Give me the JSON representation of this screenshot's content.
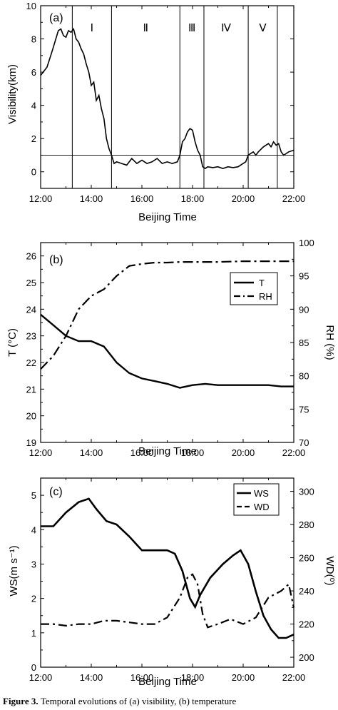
{
  "caption": {
    "lead": "Figure 3.",
    "text": "Temporal evolutions of (a) visibility, (b) temperature"
  },
  "chart_data": [
    {
      "id": "a",
      "type": "line",
      "panel_label": "(a)",
      "xlabel": "Beijing Time",
      "ylabel": "Visibility(km)",
      "x_ticks": [
        "12:00",
        "14:00",
        "16:00",
        "18:00",
        "20:00",
        "22:00"
      ],
      "xlim": [
        12,
        22
      ],
      "ylim": [
        -1,
        10
      ],
      "y_ticks": [
        "0",
        "2",
        "4",
        "6",
        "8",
        "10"
      ],
      "reference_line": 1,
      "phases": [
        {
          "label": "Ⅰ",
          "start": 13.25,
          "end": 14.8
        },
        {
          "label": "Ⅱ",
          "start": 14.8,
          "end": 17.5
        },
        {
          "label": "Ⅲ",
          "start": 17.5,
          "end": 18.45
        },
        {
          "label": "Ⅳ",
          "start": 18.45,
          "end": 20.2
        },
        {
          "label": "Ⅴ",
          "start": 20.2,
          "end": 21.35
        }
      ],
      "series": [
        {
          "x": [
            12.0,
            12.1,
            12.25,
            12.4,
            12.5,
            12.6,
            12.7,
            12.8,
            12.9,
            13.0,
            13.1,
            13.2,
            13.3,
            13.4,
            13.5,
            13.6,
            13.7,
            13.8,
            13.9,
            14.0,
            14.1,
            14.2,
            14.3,
            14.4,
            14.5,
            14.6,
            14.7,
            14.8,
            14.9,
            15.0,
            15.2,
            15.4,
            15.6,
            15.8,
            16.0,
            16.2,
            16.4,
            16.6,
            16.8,
            17.0,
            17.2,
            17.4,
            17.5,
            17.6,
            17.7,
            17.8,
            17.9,
            18.0,
            18.1,
            18.2,
            18.3,
            18.4,
            18.5,
            18.6,
            18.8,
            19.0,
            19.2,
            19.4,
            19.6,
            19.8,
            20.0,
            20.1,
            20.2,
            20.3,
            20.4,
            20.5,
            20.6,
            20.8,
            21.0,
            21.1,
            21.2,
            21.3,
            21.4,
            21.5,
            21.6,
            21.8,
            22.0
          ],
          "y": [
            5.8,
            6.0,
            6.3,
            7.0,
            7.5,
            8.0,
            8.5,
            8.6,
            8.2,
            8.1,
            8.5,
            8.4,
            8.6,
            8.0,
            7.8,
            7.4,
            7.1,
            6.5,
            6.0,
            5.2,
            5.4,
            4.3,
            4.6,
            3.8,
            3.2,
            2.0,
            1.4,
            1.0,
            0.5,
            0.6,
            0.5,
            0.4,
            0.8,
            0.5,
            0.7,
            0.5,
            0.6,
            0.8,
            0.5,
            0.6,
            0.5,
            0.6,
            1.0,
            1.8,
            2.0,
            2.4,
            2.6,
            2.5,
            1.8,
            1.3,
            1.0,
            0.3,
            0.2,
            0.3,
            0.25,
            0.3,
            0.2,
            0.3,
            0.25,
            0.3,
            0.5,
            0.6,
            1.0,
            1.1,
            1.2,
            1.0,
            1.2,
            1.5,
            1.7,
            1.5,
            1.8,
            1.6,
            1.7,
            1.2,
            1.0,
            1.2,
            1.3
          ]
        }
      ]
    },
    {
      "id": "b",
      "type": "line",
      "panel_label": "(b)",
      "xlabel": "Beijing Time",
      "ylabel_left": "T  (°C)",
      "ylabel_right": "RH  (%)",
      "x_ticks": [
        "12:00",
        "14:00",
        "16:00",
        "18:00",
        "20:00",
        "22:00"
      ],
      "xlim": [
        12,
        22
      ],
      "ylim_left": [
        19,
        26.5
      ],
      "y_ticks_left": [
        "19",
        "20",
        "21",
        "22",
        "23",
        "24",
        "25",
        "26"
      ],
      "ylim_right": [
        70,
        100
      ],
      "y_ticks_right": [
        "70",
        "75",
        "80",
        "85",
        "90",
        "95",
        "100"
      ],
      "legend": {
        "placement": "top-right"
      },
      "series": [
        {
          "name": "T",
          "axis": "left",
          "style": "solid",
          "x": [
            12.0,
            12.5,
            13.0,
            13.5,
            14.0,
            14.5,
            15.0,
            15.5,
            16.0,
            16.5,
            17.0,
            17.5,
            18.0,
            18.5,
            19.0,
            19.5,
            20.0,
            20.5,
            21.0,
            21.5,
            22.0
          ],
          "y": [
            23.8,
            23.4,
            23.0,
            22.8,
            22.8,
            22.6,
            22.0,
            21.6,
            21.4,
            21.3,
            21.2,
            21.05,
            21.15,
            21.2,
            21.15,
            21.15,
            21.15,
            21.15,
            21.15,
            21.1,
            21.1
          ]
        },
        {
          "name": "RH",
          "axis": "right",
          "style": "dash-dot",
          "x": [
            12.0,
            12.5,
            13.0,
            13.5,
            14.0,
            14.5,
            15.0,
            15.5,
            16.0,
            16.5,
            17.0,
            17.5,
            18.0,
            19.0,
            20.0,
            21.0,
            22.0
          ],
          "y": [
            81,
            83,
            86,
            90,
            92,
            93,
            95,
            96.5,
            96.8,
            97,
            97,
            97.1,
            97.1,
            97.1,
            97.2,
            97.2,
            97.2
          ]
        }
      ]
    },
    {
      "id": "c",
      "type": "line",
      "panel_label": "(c)",
      "xlabel": "Beijing Time",
      "ylabel_left": "WS(m s⁻¹)",
      "ylabel_right": "WD(⁰)",
      "x_ticks": [
        "12:00",
        "14:00",
        "16:00",
        "18:00",
        "20:00",
        "22:00"
      ],
      "xlim": [
        12,
        22
      ],
      "ylim_left": [
        0,
        5.5
      ],
      "y_ticks_left": [
        "0",
        "1",
        "2",
        "3",
        "4",
        "5"
      ],
      "ylim_right": [
        194,
        308
      ],
      "y_ticks_right": [
        "200",
        "220",
        "240",
        "260",
        "280",
        "300"
      ],
      "legend": {
        "placement": "top-right"
      },
      "series": [
        {
          "name": "WS",
          "axis": "left",
          "style": "solid",
          "x": [
            12.0,
            12.5,
            13.0,
            13.5,
            13.9,
            14.2,
            14.6,
            15.0,
            15.5,
            16.0,
            16.5,
            17.0,
            17.3,
            17.6,
            17.9,
            18.1,
            18.3,
            18.7,
            19.2,
            19.6,
            19.9,
            20.2,
            20.5,
            20.8,
            21.1,
            21.4,
            21.7,
            22.0
          ],
          "y": [
            4.1,
            4.1,
            4.5,
            4.8,
            4.9,
            4.6,
            4.25,
            4.15,
            3.8,
            3.4,
            3.4,
            3.4,
            3.3,
            2.8,
            2.0,
            1.75,
            2.1,
            2.6,
            3.0,
            3.25,
            3.4,
            3.0,
            2.2,
            1.5,
            1.1,
            0.85,
            0.85,
            0.95
          ]
        },
        {
          "name": "WD",
          "axis": "right",
          "style": "dashed",
          "x": [
            12.0,
            12.5,
            13.0,
            13.5,
            14.0,
            14.5,
            15.0,
            15.5,
            16.0,
            16.5,
            17.0,
            17.5,
            17.8,
            18.0,
            18.2,
            18.4,
            18.6,
            19.0,
            19.5,
            20.0,
            20.5,
            21.0,
            21.5,
            21.8,
            22.0
          ],
          "y": [
            220,
            220,
            219,
            220,
            220,
            222,
            222,
            221,
            220,
            220,
            224,
            236,
            248,
            250,
            244,
            226,
            218,
            220,
            223,
            220,
            224,
            236,
            240,
            244,
            230
          ]
        }
      ]
    }
  ]
}
